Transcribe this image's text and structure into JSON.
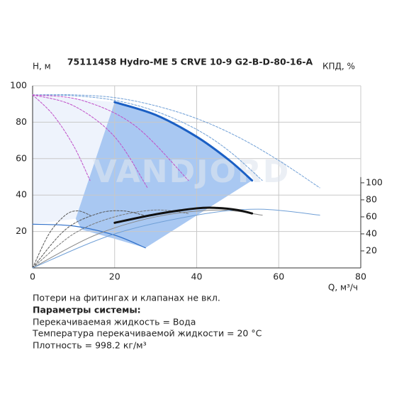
{
  "chart_data": {
    "type": "line",
    "title": "75111458 Hydro-ME 5 CRVE 10-9 G2-B-D-80-16-A",
    "ylabel": "H, м",
    "y2label": "КПД, %",
    "xlabel": "Q, м³/ч",
    "watermark": "VANDJORD",
    "xlim": [
      0,
      80
    ],
    "xticks": [
      0,
      20,
      40,
      60,
      80
    ],
    "ylim": [
      0,
      100
    ],
    "yticks": [
      20,
      40,
      60,
      80,
      100
    ],
    "y2lim": [
      0,
      214
    ],
    "y2ticks": [
      20,
      40,
      60,
      80,
      100
    ],
    "grid": true,
    "regions": [
      {
        "color": "#eef3fc",
        "x": [
          0,
          20,
          10.5,
          0
        ],
        "values": [
          95,
          91,
          27,
          24
        ]
      },
      {
        "color": "#a9c8f2",
        "x": [
          20,
          30,
          40,
          48,
          53.5,
          27.5,
          20,
          12,
          10.5
        ],
        "values": [
          91,
          84,
          72,
          59,
          48,
          11,
          16,
          21,
          27
        ]
      }
    ],
    "series": [
      {
        "color": "#6f9fd6",
        "width": 1,
        "dash": true,
        "x": [
          0,
          10,
          20,
          30,
          40,
          50,
          60,
          70
        ],
        "values": [
          95,
          95,
          93.5,
          89,
          82,
          72,
          59,
          44
        ]
      },
      {
        "color": "#6f9fd6",
        "width": 1,
        "dash": true,
        "x": [
          0,
          10,
          20,
          30,
          40,
          48,
          56
        ],
        "values": [
          95,
          94.5,
          92,
          86,
          76,
          64,
          48
        ]
      },
      {
        "color": "#c04fc8",
        "width": 1,
        "dash": true,
        "x": [
          0,
          5,
          10,
          14
        ],
        "values": [
          95,
          84,
          67,
          48
        ]
      },
      {
        "color": "#c04fc8",
        "width": 1,
        "dash": true,
        "x": [
          0,
          10,
          20,
          28
        ],
        "values": [
          95,
          89,
          72,
          44
        ]
      },
      {
        "color": "#c04fc8",
        "width": 1,
        "dash": true,
        "x": [
          0,
          12,
          25,
          38
        ],
        "values": [
          95,
          92,
          78,
          48
        ]
      },
      {
        "color": "#2e6fc9",
        "width": 1.2,
        "dash": false,
        "x": [
          0,
          10,
          20,
          27.5
        ],
        "values": [
          24,
          23,
          18,
          11
        ]
      },
      {
        "color": "#1a5fc4",
        "width": 3,
        "dash": false,
        "x": [
          20,
          30,
          40,
          48,
          53.5
        ],
        "values": [
          91,
          84,
          72,
          59,
          48
        ]
      },
      {
        "color": "#555555",
        "width": 1,
        "dash": true,
        "axis": "y2",
        "x": [
          0,
          4,
          8,
          11,
          14
        ],
        "values": [
          0,
          40,
          62,
          67,
          62
        ]
      },
      {
        "color": "#555555",
        "width": 1,
        "dash": true,
        "axis": "y2",
        "x": [
          0,
          8,
          16,
          22,
          27
        ],
        "values": [
          0,
          45,
          64,
          67,
          62
        ]
      },
      {
        "color": "#777777",
        "width": 1,
        "dash": true,
        "axis": "y2",
        "x": [
          0,
          10,
          20,
          30,
          38
        ],
        "values": [
          0,
          40,
          60,
          68,
          64
        ]
      },
      {
        "color": "#888888",
        "width": 1,
        "dash": false,
        "axis": "y2",
        "x": [
          0,
          15,
          30,
          45,
          56
        ],
        "values": [
          0,
          38,
          60,
          68,
          62
        ]
      },
      {
        "color": "#6f9fd6",
        "width": 1,
        "dash": false,
        "axis": "y2",
        "x": [
          0,
          20,
          40,
          55,
          70
        ],
        "values": [
          0,
          40,
          62,
          69,
          62
        ]
      },
      {
        "color": "#111111",
        "width": 3,
        "dash": false,
        "axis": "y2",
        "x": [
          20,
          30,
          40,
          45,
          50,
          53.5
        ],
        "values": [
          53,
          63,
          70,
          70.5,
          68,
          64
        ]
      }
    ],
    "notes": [
      "Потери на фитингах и клапанах не вкл.",
      "Параметры системы:",
      "Перекачиваемая жидкость = Вода",
      "Температура перекачиваемой жидкости = 20 °C",
      "Плотность = 998.2 кг/м³"
    ]
  }
}
